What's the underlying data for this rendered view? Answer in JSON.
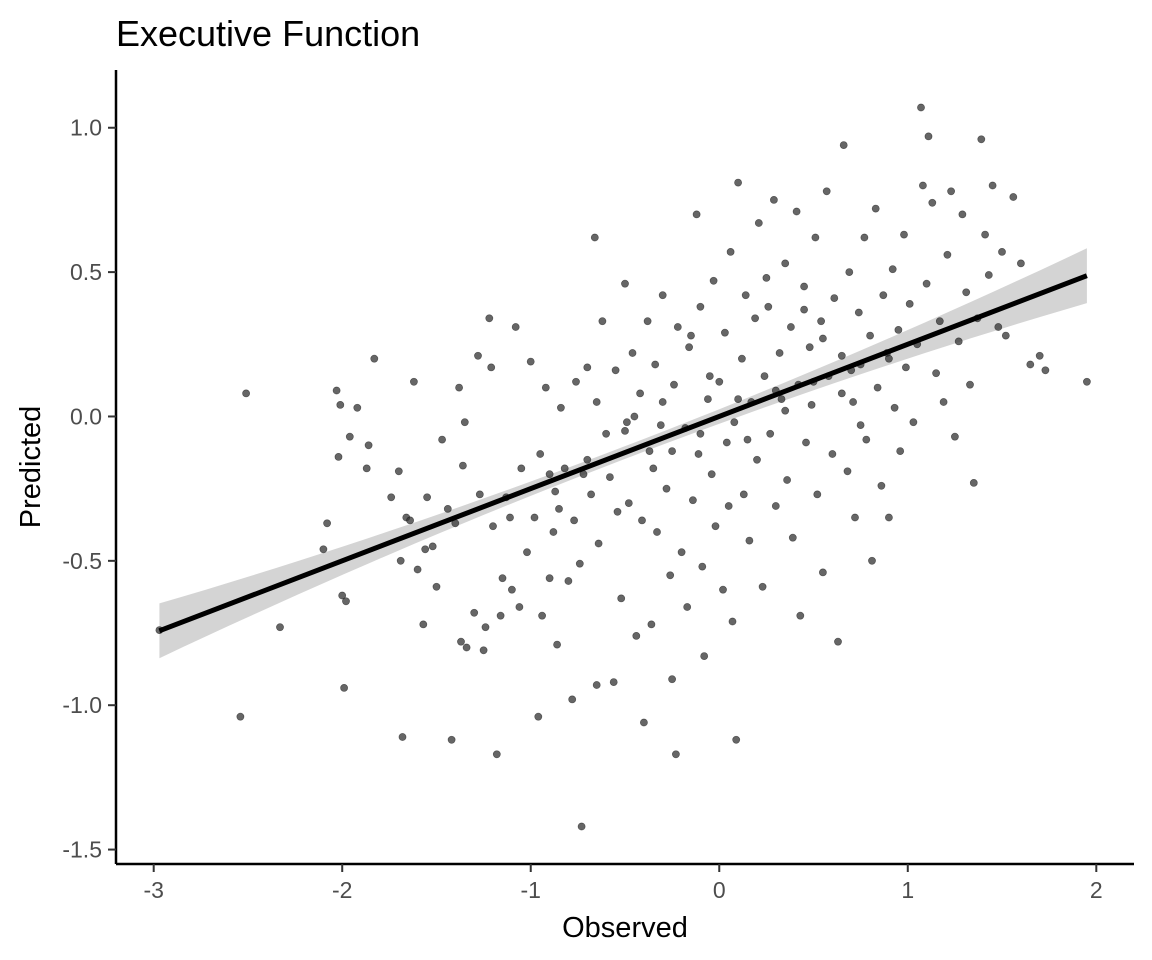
{
  "chart_data": {
    "type": "scatter",
    "title": "Executive Function",
    "xlabel": "Observed",
    "ylabel": "Predicted",
    "xlim": [
      -3.2,
      2.2
    ],
    "ylim": [
      -1.55,
      1.2
    ],
    "x_ticks": [
      -3,
      -2,
      -1,
      0,
      1,
      2
    ],
    "y_ticks": [
      -1.5,
      -1.0,
      -0.5,
      0.0,
      0.5,
      1.0
    ],
    "x_tick_labels": [
      "-3",
      "-2",
      "-1",
      "0",
      "1",
      "2"
    ],
    "y_tick_labels": [
      "-1.5",
      "-1.0",
      "-0.5",
      "0.0",
      "0.5",
      "1.0"
    ],
    "grid": false,
    "legend": "none",
    "point_color": "#333333",
    "point_opacity": 0.75,
    "fit_line": {
      "type": "linear",
      "x_range": [
        -2.97,
        1.95
      ],
      "slope": 0.25,
      "intercept": 0.0,
      "color": "#000000",
      "confidence_band_color": "#cccccc",
      "band_halfwidth_at_ends": 0.095,
      "band_halfwidth_at_center": 0.022
    },
    "points": [
      [
        -2.97,
        -0.74
      ],
      [
        -2.54,
        -1.04
      ],
      [
        -2.51,
        0.08
      ],
      [
        -2.33,
        -0.73
      ],
      [
        -2.08,
        -0.37
      ],
      [
        -2.1,
        -0.46
      ],
      [
        -2.03,
        0.09
      ],
      [
        -2.02,
        -0.14
      ],
      [
        -2.01,
        0.04
      ],
      [
        -2.0,
        -0.62
      ],
      [
        -1.99,
        -0.94
      ],
      [
        -1.98,
        -0.64
      ],
      [
        -1.96,
        -0.07
      ],
      [
        -1.92,
        0.03
      ],
      [
        -1.87,
        -0.18
      ],
      [
        -1.86,
        -0.1
      ],
      [
        -1.83,
        0.2
      ],
      [
        -1.74,
        -0.28
      ],
      [
        -1.7,
        -0.19
      ],
      [
        -1.69,
        -0.5
      ],
      [
        -1.68,
        -1.11
      ],
      [
        -1.66,
        -0.35
      ],
      [
        -1.64,
        -0.36
      ],
      [
        -1.62,
        0.12
      ],
      [
        -1.6,
        -0.53
      ],
      [
        -1.57,
        -0.72
      ],
      [
        -1.56,
        -0.46
      ],
      [
        -1.55,
        -0.28
      ],
      [
        -1.52,
        -0.45
      ],
      [
        -1.5,
        -0.59
      ],
      [
        -1.47,
        -0.08
      ],
      [
        -1.44,
        -0.32
      ],
      [
        -1.42,
        -1.12
      ],
      [
        -1.4,
        -0.37
      ],
      [
        -1.38,
        0.1
      ],
      [
        -1.37,
        -0.78
      ],
      [
        -1.36,
        -0.17
      ],
      [
        -1.35,
        -0.02
      ],
      [
        -1.34,
        -0.8
      ],
      [
        -1.3,
        -0.68
      ],
      [
        -1.28,
        0.21
      ],
      [
        -1.27,
        -0.27
      ],
      [
        -1.25,
        -0.81
      ],
      [
        -1.24,
        -0.73
      ],
      [
        -1.22,
        0.34
      ],
      [
        -1.21,
        0.17
      ],
      [
        -1.2,
        -0.38
      ],
      [
        -1.18,
        -1.17
      ],
      [
        -1.16,
        -0.69
      ],
      [
        -1.15,
        -0.56
      ],
      [
        -1.13,
        -0.28
      ],
      [
        -1.11,
        -0.35
      ],
      [
        -1.1,
        -0.6
      ],
      [
        -1.08,
        0.31
      ],
      [
        -1.06,
        -0.66
      ],
      [
        -1.05,
        -0.18
      ],
      [
        -1.02,
        -0.47
      ],
      [
        -1.0,
        0.19
      ],
      [
        -0.98,
        -0.35
      ],
      [
        -0.96,
        -1.04
      ],
      [
        -0.95,
        -0.13
      ],
      [
        -0.94,
        -0.69
      ],
      [
        -0.92,
        0.1
      ],
      [
        -0.9,
        -0.56
      ],
      [
        -0.88,
        -0.4
      ],
      [
        -0.87,
        -0.26
      ],
      [
        -0.86,
        -0.79
      ],
      [
        -0.84,
        0.03
      ],
      [
        -0.82,
        -0.18
      ],
      [
        -0.8,
        -0.57
      ],
      [
        -0.78,
        -0.98
      ],
      [
        -0.77,
        -0.36
      ],
      [
        -0.76,
        0.12
      ],
      [
        -0.74,
        -0.51
      ],
      [
        -0.73,
        -1.42
      ],
      [
        -0.72,
        -0.2
      ],
      [
        -0.7,
        0.17
      ],
      [
        -0.68,
        -0.27
      ],
      [
        -0.66,
        0.62
      ],
      [
        -0.65,
        -0.93
      ],
      [
        -0.64,
        -0.44
      ],
      [
        -0.62,
        0.33
      ],
      [
        -0.6,
        -0.06
      ],
      [
        -0.58,
        -0.21
      ],
      [
        -0.56,
        -0.92
      ],
      [
        -0.55,
        0.16
      ],
      [
        -0.54,
        -0.33
      ],
      [
        -0.52,
        -0.63
      ],
      [
        -0.5,
        0.46
      ],
      [
        -0.49,
        -0.02
      ],
      [
        -0.48,
        -0.3
      ],
      [
        -0.46,
        0.22
      ],
      [
        -0.44,
        -0.76
      ],
      [
        -0.42,
        0.08
      ],
      [
        -0.41,
        -0.36
      ],
      [
        -0.4,
        -1.06
      ],
      [
        -0.38,
        0.33
      ],
      [
        -0.37,
        -0.12
      ],
      [
        -0.36,
        -0.72
      ],
      [
        -0.34,
        0.18
      ],
      [
        -0.33,
        -0.4
      ],
      [
        -0.31,
        -0.03
      ],
      [
        -0.3,
        0.42
      ],
      [
        -0.28,
        -0.25
      ],
      [
        -0.26,
        -0.55
      ],
      [
        -0.25,
        -0.91
      ],
      [
        -0.24,
        0.11
      ],
      [
        -0.23,
        -1.17
      ],
      [
        -0.22,
        0.31
      ],
      [
        -0.2,
        -0.47
      ],
      [
        -0.18,
        -0.04
      ],
      [
        -0.17,
        -0.66
      ],
      [
        -0.16,
        0.24
      ],
      [
        -0.14,
        -0.29
      ],
      [
        -0.12,
        0.7
      ],
      [
        -0.11,
        -0.13
      ],
      [
        -0.1,
        0.38
      ],
      [
        -0.09,
        -0.52
      ],
      [
        -0.08,
        -0.83
      ],
      [
        -0.06,
        0.06
      ],
      [
        -0.04,
        -0.2
      ],
      [
        -0.03,
        0.47
      ],
      [
        -0.02,
        -0.38
      ],
      [
        0.0,
        0.12
      ],
      [
        0.02,
        -0.6
      ],
      [
        0.03,
        0.29
      ],
      [
        0.04,
        -0.09
      ],
      [
        0.06,
        0.57
      ],
      [
        0.07,
        -0.71
      ],
      [
        0.08,
        -0.02
      ],
      [
        0.09,
        -1.12
      ],
      [
        0.1,
        0.81
      ],
      [
        0.12,
        0.2
      ],
      [
        0.13,
        -0.27
      ],
      [
        0.14,
        0.42
      ],
      [
        0.16,
        -0.43
      ],
      [
        0.17,
        0.05
      ],
      [
        0.19,
        0.34
      ],
      [
        0.2,
        -0.15
      ],
      [
        0.21,
        0.67
      ],
      [
        0.23,
        -0.59
      ],
      [
        0.24,
        0.14
      ],
      [
        0.26,
        0.38
      ],
      [
        0.27,
        -0.06
      ],
      [
        0.29,
        0.75
      ],
      [
        0.3,
        -0.31
      ],
      [
        0.32,
        0.22
      ],
      [
        0.33,
        0.06
      ],
      [
        0.35,
        0.53
      ],
      [
        0.36,
        -0.22
      ],
      [
        0.38,
        0.31
      ],
      [
        0.39,
        -0.42
      ],
      [
        0.41,
        0.71
      ],
      [
        0.42,
        0.11
      ],
      [
        0.43,
        -0.69
      ],
      [
        0.45,
        0.45
      ],
      [
        0.46,
        -0.09
      ],
      [
        0.48,
        0.24
      ],
      [
        0.49,
        0.04
      ],
      [
        0.51,
        0.62
      ],
      [
        0.52,
        -0.27
      ],
      [
        0.54,
        0.33
      ],
      [
        0.55,
        -0.54
      ],
      [
        0.57,
        0.78
      ],
      [
        0.58,
        0.14
      ],
      [
        0.6,
        -0.13
      ],
      [
        0.61,
        0.41
      ],
      [
        0.63,
        -0.78
      ],
      [
        0.65,
        0.21
      ],
      [
        0.66,
        0.94
      ],
      [
        0.68,
        -0.19
      ],
      [
        0.69,
        0.5
      ],
      [
        0.71,
        0.05
      ],
      [
        0.72,
        -0.35
      ],
      [
        0.74,
        0.36
      ],
      [
        0.75,
        0.18
      ],
      [
        0.77,
        0.62
      ],
      [
        0.78,
        -0.08
      ],
      [
        0.8,
        0.28
      ],
      [
        0.81,
        -0.5
      ],
      [
        0.83,
        0.72
      ],
      [
        0.84,
        0.1
      ],
      [
        0.86,
        -0.24
      ],
      [
        0.87,
        0.42
      ],
      [
        0.89,
        0.22
      ],
      [
        0.9,
        -0.35
      ],
      [
        0.92,
        0.51
      ],
      [
        0.93,
        0.03
      ],
      [
        0.95,
        0.3
      ],
      [
        0.96,
        -0.12
      ],
      [
        0.98,
        0.63
      ],
      [
        0.99,
        0.17
      ],
      [
        1.01,
        0.39
      ],
      [
        1.03,
        -0.02
      ],
      [
        1.05,
        0.25
      ],
      [
        1.07,
        1.07
      ],
      [
        1.08,
        0.8
      ],
      [
        1.1,
        0.46
      ],
      [
        1.11,
        0.97
      ],
      [
        1.13,
        0.74
      ],
      [
        1.15,
        0.15
      ],
      [
        1.17,
        0.33
      ],
      [
        1.19,
        0.05
      ],
      [
        1.21,
        0.56
      ],
      [
        1.23,
        0.78
      ],
      [
        1.25,
        -0.07
      ],
      [
        1.27,
        0.26
      ],
      [
        1.29,
        0.7
      ],
      [
        1.31,
        0.43
      ],
      [
        1.33,
        0.11
      ],
      [
        1.35,
        -0.23
      ],
      [
        1.37,
        0.34
      ],
      [
        1.39,
        0.96
      ],
      [
        1.41,
        0.63
      ],
      [
        1.43,
        0.49
      ],
      [
        1.45,
        0.8
      ],
      [
        1.48,
        0.31
      ],
      [
        1.5,
        0.57
      ],
      [
        1.52,
        0.28
      ],
      [
        1.56,
        0.76
      ],
      [
        1.6,
        0.53
      ],
      [
        1.65,
        0.18
      ],
      [
        1.7,
        0.21
      ],
      [
        1.73,
        0.16
      ],
      [
        1.95,
        0.12
      ],
      [
        -0.5,
        -0.05
      ],
      [
        -0.3,
        0.05
      ],
      [
        -0.1,
        -0.06
      ],
      [
        0.1,
        0.06
      ],
      [
        0.3,
        0.09
      ],
      [
        0.5,
        0.12
      ],
      [
        0.7,
        0.16
      ],
      [
        -0.7,
        -0.15
      ],
      [
        -0.9,
        -0.2
      ],
      [
        0.9,
        0.2
      ],
      [
        -0.45,
        0.0
      ],
      [
        -0.25,
        -0.12
      ],
      [
        -0.05,
        0.14
      ],
      [
        0.15,
        -0.08
      ],
      [
        0.35,
        0.02
      ],
      [
        0.55,
        0.27
      ],
      [
        0.75,
        -0.03
      ],
      [
        -0.65,
        0.05
      ],
      [
        -0.85,
        -0.32
      ],
      [
        0.25,
        0.48
      ],
      [
        -0.15,
        0.28
      ],
      [
        0.45,
        0.37
      ],
      [
        0.65,
        0.08
      ],
      [
        -0.35,
        -0.18
      ],
      [
        0.05,
        -0.31
      ]
    ]
  }
}
